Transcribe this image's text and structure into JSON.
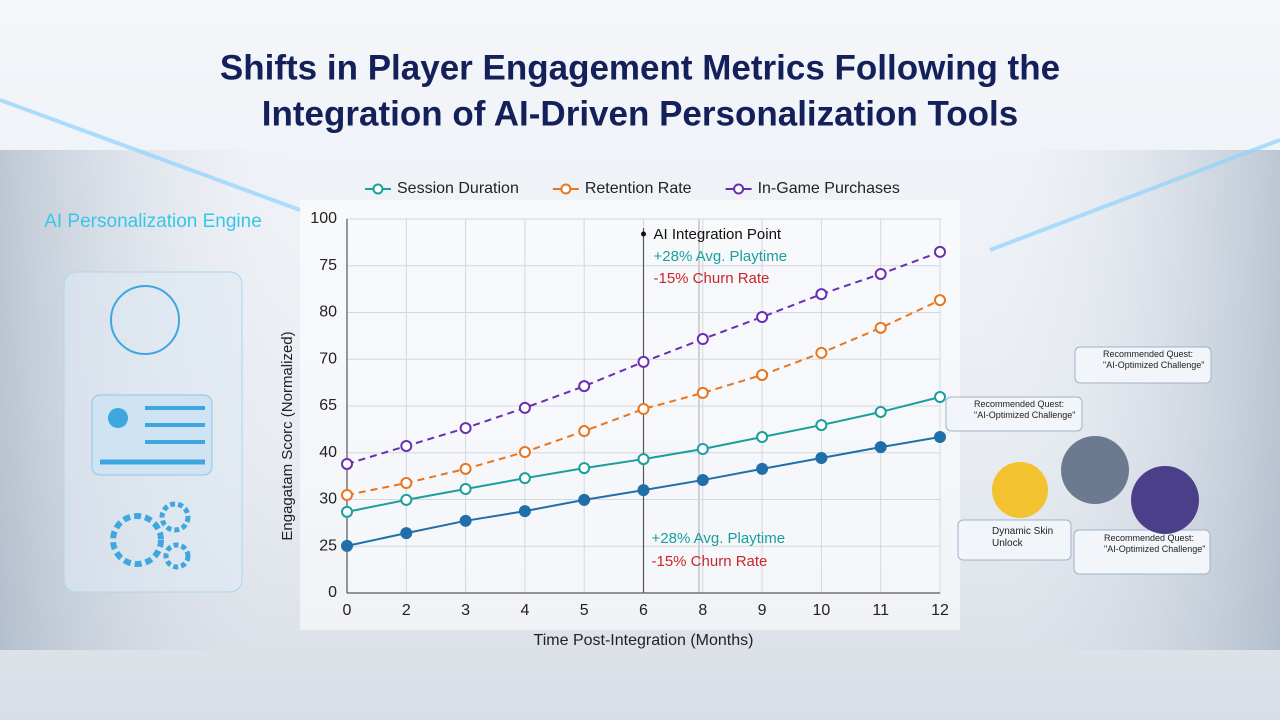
{
  "chart_data": {
    "type": "line",
    "title": [
      "Shifts in Player Engagement Metrics Following the",
      "Integration of AI-Driven Personalization Tools"
    ],
    "x_label": "Time Post-Integration (Months)",
    "y_label": "Engagatam Scorc (Normalized)",
    "categories": [
      "0",
      "2",
      "3",
      "4",
      "5",
      "6",
      "8",
      "9",
      "10",
      "11",
      "12"
    ],
    "ylim": [
      0,
      100
    ],
    "yticks": [
      0,
      {
        "value": 12.5,
        "label": "25"
      },
      {
        "value": 25,
        "label": "30"
      },
      {
        "value": 37.5,
        "label": "40"
      },
      {
        "value": 50,
        "label": "65"
      },
      {
        "value": 62.5,
        "label": "70"
      },
      {
        "value": 75,
        "label": "80"
      },
      {
        "value": 87.5,
        "label": "75"
      },
      100
    ],
    "grid": true,
    "series": [
      {
        "name": "Session Duration",
        "color": "#1a9e9e",
        "dashed": false,
        "values": [
          21.7,
          24.9,
          27.8,
          30.7,
          33.4,
          35.8,
          38.5,
          41.7,
          44.9,
          48.4,
          52.4
        ]
      },
      {
        "color": "#1f6fa8",
        "dashed": false,
        "values": [
          12.6,
          16.0,
          19.3,
          21.9,
          24.9,
          27.5,
          30.2,
          33.2,
          36.1,
          39.0,
          41.7
        ]
      },
      {
        "name": "Retention Rate",
        "color": "#e8761e",
        "dashed": true,
        "values": [
          26.2,
          29.4,
          33.2,
          37.7,
          43.3,
          49.2,
          53.5,
          58.3,
          64.2,
          70.9,
          78.3
        ]
      },
      {
        "name": "In-Game Purchases",
        "color": "#6a2fb0",
        "dashed": true,
        "values": [
          34.5,
          39.3,
          44.1,
          49.5,
          55.3,
          61.8,
          67.9,
          73.8,
          79.9,
          85.3,
          91.2
        ]
      }
    ],
    "annotations": {
      "marker": "AI Integration Point",
      "playtime": "+28% Avg. Playtime",
      "churn": "-15% Churn Rate"
    }
  },
  "panel": {
    "title": "AI Personalization Engine"
  },
  "cards": [
    "Recommended Quest: \"AI-Optimized Challenge\"",
    "Recommended Quest: \"AI-Optimized Challenge\"",
    "Dynamic Skin Unlock",
    "Recommended Quest: \"AI-Optimized Challenge\""
  ]
}
